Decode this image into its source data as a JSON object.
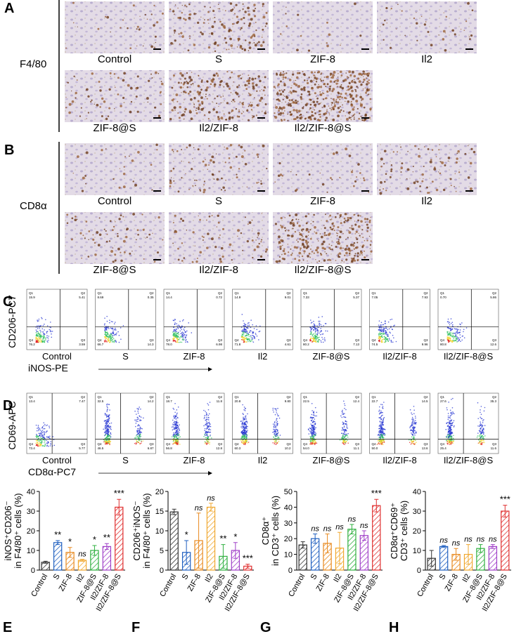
{
  "panel_a": {
    "letter": "A",
    "stain": "F4/80",
    "captions": [
      "Control",
      "S",
      "ZIF-8",
      "Il2",
      "ZIF-8@S",
      "Il2/ZIF-8",
      "Il2/ZIF-8@S"
    ]
  },
  "panel_b": {
    "letter": "B",
    "stain": "CD8α",
    "captions": [
      "Control",
      "S",
      "ZIF-8",
      "Il2",
      "ZIF-8@S",
      "Il2/ZIF-8",
      "Il2/ZIF-8@S"
    ]
  },
  "panel_c": {
    "letter": "C",
    "y_label": "CD206-PC7",
    "x_label": "iNOS-PE",
    "quadrant_names": [
      "Q1",
      "Q2",
      "Q3",
      "Q4"
    ],
    "plots": [
      {
        "caption": "Control",
        "q1": "15.9",
        "q2": "5.41",
        "q3": "3.59",
        "q4": "76.2"
      },
      {
        "caption": "S",
        "q1": "8.69",
        "q2": "0.35",
        "q3": "14.3",
        "q4": "66.7"
      },
      {
        "caption": "ZIF-8",
        "q1": "14.4",
        "q2": "0.72",
        "q3": "6.98",
        "q4": "78.0"
      },
      {
        "caption": "Il2",
        "q1": "14.9",
        "q2": "9.01",
        "q3": "4.61",
        "q4": "71.8"
      },
      {
        "caption": "ZIF-8@S",
        "q1": "7.33",
        "q2": "5.37",
        "q3": "7.13",
        "q4": "80.2"
      },
      {
        "caption": "Il2/ZIF-8",
        "q1": "7.05",
        "q2": "7.93",
        "q3": "9.96",
        "q4": "74.5"
      },
      {
        "caption": "Il2/ZIF-8@S",
        "q1": "0.70",
        "q2": "5.86",
        "q3": "12.6",
        "q4": "80.8"
      }
    ]
  },
  "panel_d": {
    "letter": "D",
    "y_label": "CD69-APC",
    "x_label": "CD8α-PC7",
    "quadrant_names": [
      "Q1",
      "Q2",
      "Q3",
      "Q4"
    ],
    "plots": [
      {
        "caption": "Control",
        "q1": "13.4",
        "q2": "7.47",
        "q3": "5.77",
        "q4": "73.4"
      },
      {
        "caption": "S",
        "q1": "32.5",
        "q2": "14.2",
        "q3": "6.87",
        "q4": "46.5"
      },
      {
        "caption": "ZIF-8",
        "q1": "18.7",
        "q2": "11.8",
        "q3": "12.8",
        "q4": "56.8"
      },
      {
        "caption": "Il2",
        "q1": "20.8",
        "q2": "9.80",
        "q3": "10.2",
        "q4": "60.3"
      },
      {
        "caption": "ZIF-8@S",
        "q1": "22.5",
        "q2": "12.4",
        "q3": "11.1",
        "q4": "54.0"
      },
      {
        "caption": "Il2/ZIF-8",
        "q1": "22.7",
        "q2": "14.5",
        "q3": "13.6",
        "q4": "50.0"
      },
      {
        "caption": "Il2/ZIF-8@S",
        "q1": "27.6",
        "q2": "35.3",
        "q3": "11.6",
        "q4": "25.4"
      }
    ]
  },
  "chart_data": [
    {
      "type": "bar",
      "letter": "E",
      "y_label": [
        "iNOS⁺CD206⁻",
        "in F4/80⁺ cells (%)"
      ],
      "categories": [
        "Control",
        "S",
        "ZIF-8",
        "Il2",
        "ZIF-8@S",
        "Il2/ZIF-8",
        "Il2/ZIF-8@S"
      ],
      "values": [
        4,
        14,
        9,
        5,
        10,
        12,
        32
      ],
      "errors": [
        0.5,
        1,
        2.5,
        0.5,
        2.5,
        1.5,
        4
      ],
      "significance": [
        null,
        "**",
        "*",
        "ns",
        "*",
        "**",
        "***"
      ],
      "colors": [
        "#333333",
        "#2060c0",
        "#e88a20",
        "#f0a830",
        "#30b040",
        "#a040c8",
        "#e03030"
      ],
      "ylim": [
        0,
        40
      ],
      "yticks": [
        0,
        10,
        20,
        30,
        40
      ]
    },
    {
      "type": "bar",
      "letter": "F",
      "y_label": [
        "CD206⁺iNOS⁻",
        "in F4/80⁺ cells (%)"
      ],
      "categories": [
        "Control",
        "S",
        "ZIF-8",
        "Il2",
        "ZIF-8@S",
        "Il2/ZIF-8",
        "Il2/ZIF-8@S"
      ],
      "values": [
        14.8,
        4.5,
        7.5,
        16,
        3.5,
        5,
        1
      ],
      "errors": [
        0.7,
        3,
        7,
        1,
        3,
        2,
        0.5
      ],
      "significance": [
        null,
        "*",
        "ns",
        "ns",
        "**",
        "*",
        "***"
      ],
      "colors": [
        "#333333",
        "#2060c0",
        "#e88a20",
        "#f0a830",
        "#30b040",
        "#a040c8",
        "#e03030"
      ],
      "ylim": [
        0,
        20
      ],
      "yticks": [
        0,
        5,
        10,
        15,
        20
      ]
    },
    {
      "type": "bar",
      "letter": "G",
      "y_label": [
        "CD8α⁺",
        "in CD3⁺ cells (%)"
      ],
      "categories": [
        "Control",
        "S",
        "ZIF-8",
        "Il2",
        "ZIF-8@S",
        "Il2/ZIF-8",
        "Il2/ZIF-8@S"
      ],
      "values": [
        16,
        20,
        17,
        14,
        26,
        22,
        41
      ],
      "errors": [
        2,
        3,
        6,
        10,
        3,
        3,
        4
      ],
      "significance": [
        null,
        "ns",
        "ns",
        "ns",
        "ns",
        "ns",
        "***"
      ],
      "colors": [
        "#333333",
        "#2060c0",
        "#e88a20",
        "#f0a830",
        "#30b040",
        "#a040c8",
        "#e03030"
      ],
      "ylim": [
        0,
        50
      ],
      "yticks": [
        0,
        10,
        20,
        30,
        40,
        50
      ]
    },
    {
      "type": "bar",
      "letter": "H",
      "y_label": [
        "CD8α⁺CD69⁺",
        "CD3⁺ cells (%)"
      ],
      "categories": [
        "Control",
        "S",
        "ZIF-8",
        "Il2",
        "ZIF-8@S",
        "Il2/ZIF-8",
        "Il2/ZIF-8@S"
      ],
      "values": [
        6,
        12,
        8,
        8,
        11,
        12,
        30
      ],
      "errors": [
        4,
        0.5,
        3,
        5,
        2,
        1,
        3
      ],
      "significance": [
        null,
        "ns",
        "ns",
        "ns",
        "ns",
        "ns",
        "***"
      ],
      "colors": [
        "#333333",
        "#2060c0",
        "#e88a20",
        "#f0a830",
        "#30b040",
        "#a040c8",
        "#e03030"
      ],
      "ylim": [
        0,
        40
      ],
      "yticks": [
        0,
        10,
        20,
        30,
        40
      ]
    }
  ]
}
